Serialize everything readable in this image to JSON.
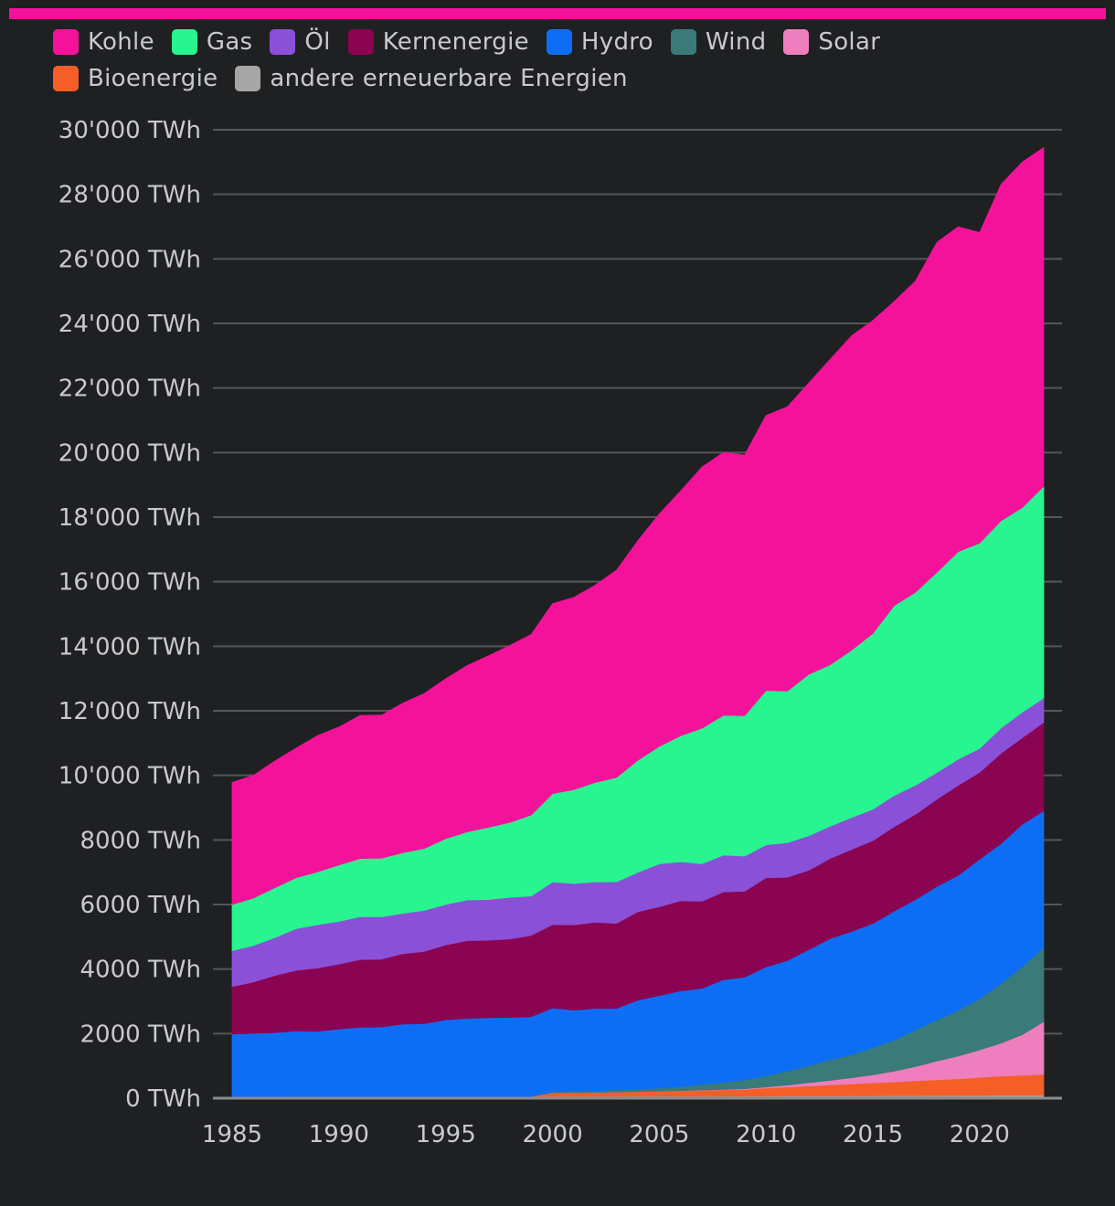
{
  "chart_data": {
    "type": "area",
    "stacked": true,
    "title": "",
    "xlabel": "",
    "ylabel": "",
    "unit": "TWh",
    "ylim": [
      0,
      30000
    ],
    "xlim": [
      1985,
      2023
    ],
    "grid": true,
    "legend_position": "top",
    "x_ticks": [
      "1985",
      "1990",
      "1995",
      "2000",
      "2005",
      "2010",
      "2015",
      "2020"
    ],
    "y_ticks": [
      "0 TWh",
      "2000 TWh",
      "4000 TWh",
      "6000 TWh",
      "8000 TWh",
      "10'000 TWh",
      "12'000 TWh",
      "14'000 TWh",
      "16'000 TWh",
      "18'000 TWh",
      "20'000 TWh",
      "22'000 TWh",
      "24'000 TWh",
      "26'000 TWh",
      "28'000 TWh",
      "30'000 TWh"
    ],
    "x": [
      1985,
      1986,
      1987,
      1988,
      1989,
      1990,
      1991,
      1992,
      1993,
      1994,
      1995,
      1996,
      1997,
      1998,
      1999,
      2000,
      2001,
      2002,
      2003,
      2004,
      2005,
      2006,
      2007,
      2008,
      2009,
      2010,
      2011,
      2012,
      2013,
      2014,
      2015,
      2016,
      2017,
      2018,
      2019,
      2020,
      2021,
      2022,
      2023
    ],
    "series": [
      {
        "name": "andere erneuerbare Energien",
        "color": "#a6a6a6",
        "values": [
          40,
          41,
          42,
          43,
          44,
          45,
          46,
          47,
          48,
          49,
          50,
          51,
          52,
          53,
          54,
          55,
          56,
          57,
          58,
          59,
          60,
          61,
          62,
          63,
          64,
          66,
          68,
          70,
          72,
          74,
          76,
          78,
          80,
          82,
          84,
          86,
          88,
          89,
          90
        ]
      },
      {
        "name": "Bioenergie",
        "color": "#f55f27",
        "values": [
          0,
          0,
          0,
          0,
          0,
          0,
          0,
          0,
          0,
          0,
          0,
          0,
          0,
          0,
          0,
          110,
          115,
          120,
          130,
          140,
          150,
          165,
          180,
          195,
          210,
          250,
          280,
          310,
          340,
          370,
          400,
          430,
          460,
          490,
          520,
          560,
          600,
          620,
          650
        ]
      },
      {
        "name": "Solar",
        "color": "#ee7ebe",
        "values": [
          0,
          0,
          0,
          0,
          0,
          0,
          0,
          0,
          0,
          0,
          0,
          0,
          0,
          0,
          0,
          1,
          2,
          3,
          4,
          5,
          6,
          7,
          9,
          12,
          20,
          32,
          60,
          100,
          140,
          190,
          250,
          330,
          440,
          580,
          700,
          850,
          1020,
          1260,
          1630
        ]
      },
      {
        "name": "Wind",
        "color": "#3a7a78",
        "values": [
          0,
          0,
          0,
          0,
          0,
          0,
          0,
          0,
          0,
          0,
          0,
          0,
          0,
          0,
          0,
          31,
          38,
          52,
          63,
          85,
          104,
          133,
          171,
          220,
          277,
          342,
          437,
          521,
          643,
          712,
          835,
          962,
          1136,
          1270,
          1420,
          1590,
          1850,
          2100,
          2300
        ]
      },
      {
        "name": "Hydro",
        "color": "#0d6ef5",
        "values": [
          1950,
          1970,
          1990,
          2040,
          2030,
          2100,
          2150,
          2160,
          2250,
          2260,
          2380,
          2420,
          2440,
          2450,
          2470,
          2600,
          2520,
          2550,
          2530,
          2750,
          2860,
          2960,
          2980,
          3180,
          3180,
          3380,
          3420,
          3600,
          3750,
          3820,
          3850,
          4000,
          4040,
          4140,
          4180,
          4320,
          4330,
          4420,
          4230
        ]
      },
      {
        "name": "Kernenergie",
        "color": "#8a0451",
        "values": [
          1470,
          1590,
          1770,
          1880,
          1960,
          2010,
          2100,
          2100,
          2180,
          2240,
          2320,
          2410,
          2400,
          2430,
          2520,
          2580,
          2640,
          2670,
          2630,
          2740,
          2750,
          2790,
          2700,
          2720,
          2660,
          2760,
          2580,
          2460,
          2480,
          2540,
          2570,
          2610,
          2640,
          2700,
          2790,
          2690,
          2800,
          2680,
          2740
        ]
      },
      {
        "name": "Öl",
        "color": "#8a50d8",
        "values": [
          1110,
          1130,
          1170,
          1290,
          1340,
          1320,
          1330,
          1310,
          1250,
          1270,
          1250,
          1260,
          1260,
          1290,
          1220,
          1320,
          1280,
          1250,
          1290,
          1220,
          1330,
          1210,
          1160,
          1140,
          1090,
          1020,
          1070,
          1070,
          1000,
          990,
          970,
          970,
          900,
          830,
          810,
          740,
          780,
          790,
          760
        ]
      },
      {
        "name": "Gas",
        "color": "#28f58f",
        "values": [
          1430,
          1470,
          1550,
          1580,
          1640,
          1750,
          1800,
          1820,
          1880,
          1920,
          2040,
          2110,
          2240,
          2320,
          2510,
          2740,
          2910,
          3080,
          3230,
          3470,
          3640,
          3900,
          4200,
          4330,
          4350,
          4780,
          4700,
          5000,
          5000,
          5180,
          5450,
          5880,
          5980,
          6200,
          6430,
          6360,
          6420,
          6340,
          6550
        ]
      },
      {
        "name": "Kohle",
        "color": "#f5129b",
        "values": [
          3780,
          3800,
          3920,
          4010,
          4220,
          4270,
          4430,
          4430,
          4630,
          4800,
          4950,
          5150,
          5310,
          5480,
          5590,
          5880,
          5950,
          6110,
          6420,
          6800,
          7200,
          7580,
          8090,
          8140,
          8070,
          8520,
          8800,
          9020,
          9460,
          9740,
          9690,
          9420,
          9640,
          10220,
          10060,
          9620,
          10420,
          10700,
          10500
        ]
      }
    ]
  },
  "legend": {
    "row1": [
      {
        "label": "Kohle",
        "color": "#f5129b"
      },
      {
        "label": "Gas",
        "color": "#28f58f"
      },
      {
        "label": "Öl",
        "color": "#8a50d8"
      },
      {
        "label": "Kernenergie",
        "color": "#8a0451"
      },
      {
        "label": "Hydro",
        "color": "#0d6ef5"
      },
      {
        "label": "Wind",
        "color": "#3a7a78"
      },
      {
        "label": "Solar",
        "color": "#ee7ebe"
      }
    ],
    "row2": [
      {
        "label": "Bioenergie",
        "color": "#f55f27"
      },
      {
        "label": "andere erneuerbare Energien",
        "color": "#a6a6a6"
      }
    ]
  },
  "colors": {
    "accent": "#f5129b",
    "background": "#1f2022",
    "grid": "#55575b",
    "axis": "#8a8b8e",
    "text": "#c9cacc"
  }
}
